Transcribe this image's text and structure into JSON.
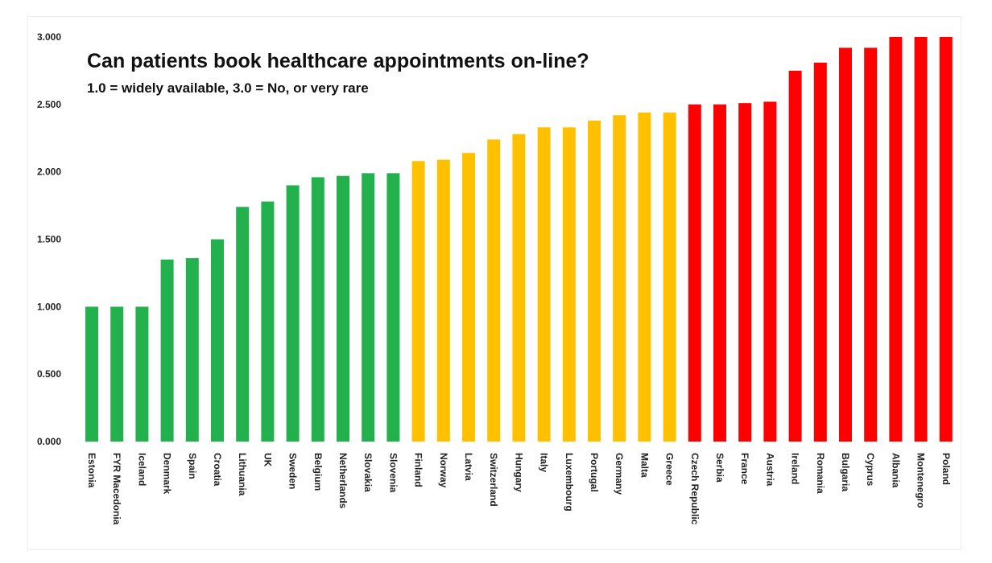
{
  "chart_data": {
    "type": "bar",
    "title": "Can patients book healthcare appointments on-line?",
    "subtitle": "1.0 = widely available, 3.0 = No, or very rare",
    "xlabel": "",
    "ylabel": "",
    "ylim": [
      0,
      3
    ],
    "yticks": [
      "0.000",
      "0.500",
      "1.000",
      "1.500",
      "2.000",
      "2.500",
      "3.000"
    ],
    "ytick_values": [
      0,
      0.5,
      1,
      1.5,
      2,
      2.5,
      3
    ],
    "grid": false,
    "categories": [
      "Estonia",
      "FYR Macedonia",
      "Iceland",
      "Denmark",
      "Spain",
      "Croatia",
      "Lithuania",
      "UK",
      "Sweden",
      "Belgium",
      "Netherlands",
      "Slovakia",
      "Slovenia",
      "Finland",
      "Norway",
      "Latvia",
      "Switzerland",
      "Hungary",
      "Italy",
      "Luxembourg",
      "Portugal",
      "Germany",
      "Malta",
      "Greece",
      "Czech Republic",
      "Serbia",
      "France",
      "Austria",
      "Ireland",
      "Romania",
      "Bulgaria",
      "Cyprus",
      "Albania",
      "Montenegro",
      "Poland"
    ],
    "values": [
      1.0,
      1.0,
      1.0,
      1.35,
      1.36,
      1.5,
      1.74,
      1.78,
      1.9,
      1.96,
      1.97,
      1.99,
      1.99,
      2.08,
      2.09,
      2.14,
      2.24,
      2.28,
      2.33,
      2.33,
      2.38,
      2.42,
      2.44,
      2.44,
      2.5,
      2.5,
      2.51,
      2.52,
      2.75,
      2.81,
      2.92,
      2.92,
      3.0,
      3.0,
      3.0
    ],
    "color_groups": [
      "green",
      "green",
      "green",
      "green",
      "green",
      "green",
      "green",
      "green",
      "green",
      "green",
      "green",
      "green",
      "green",
      "yellow",
      "yellow",
      "yellow",
      "yellow",
      "yellow",
      "yellow",
      "yellow",
      "yellow",
      "yellow",
      "yellow",
      "yellow",
      "red",
      "red",
      "red",
      "red",
      "red",
      "red",
      "red",
      "red",
      "red",
      "red",
      "red"
    ],
    "colors": {
      "green": "#22b14c",
      "yellow": "#ffc000",
      "red": "#ff0000"
    }
  }
}
